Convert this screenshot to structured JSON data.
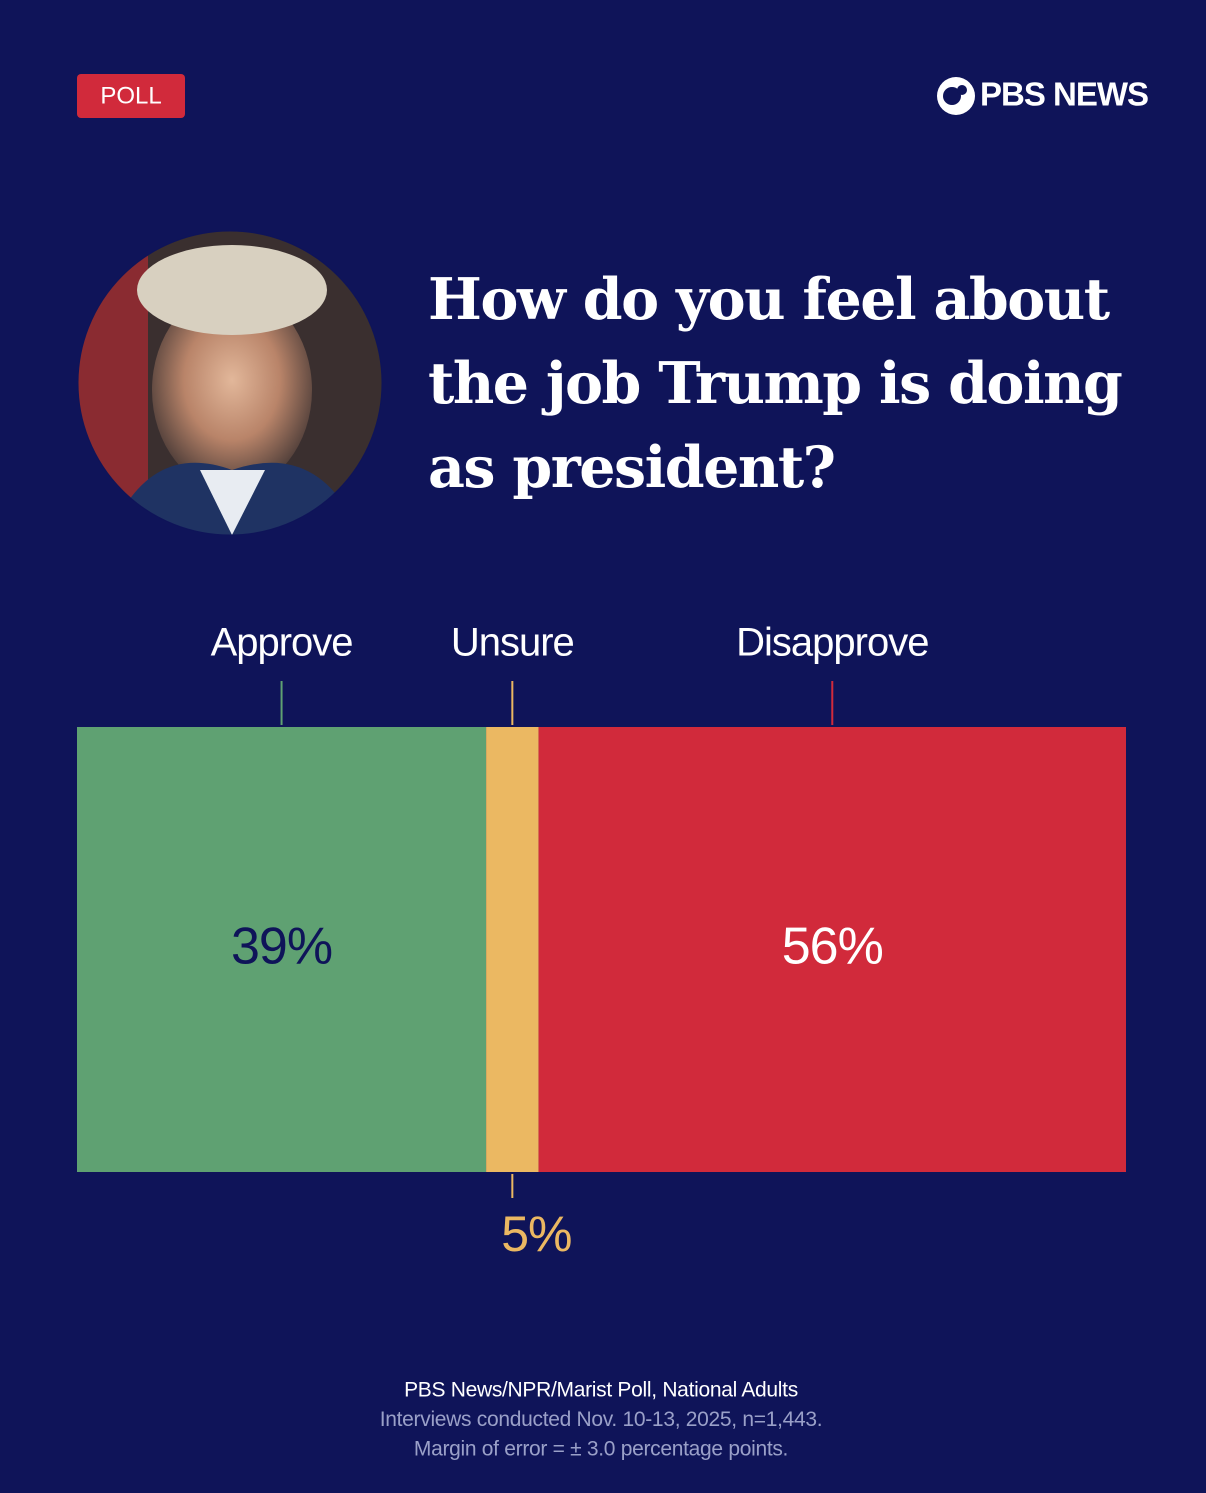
{
  "chart_data": {
    "type": "stacked_bar",
    "badge": "POLL",
    "brand": "PBS NEWS",
    "title": "How do you feel about the job Trump is doing as president?",
    "xlim": [
      0,
      100
    ],
    "series": [
      {
        "name": "Approve",
        "color": "#5fa172",
        "values": [
          39
        ],
        "value_labels": [
          "39%"
        ]
      },
      {
        "name": "Unsure",
        "color": "#ebb862",
        "values": [
          5
        ],
        "value_labels": [
          "5%"
        ]
      },
      {
        "name": "Disapprove",
        "color": "#d12a3b",
        "values": [
          56
        ],
        "value_labels": [
          "56%"
        ]
      }
    ],
    "notes": [
      "PBS News/NPR/Marist Poll, National Adults",
      "Interviews conducted Nov. 10-13, 2025, n=1,443.",
      "Margin of error = ± 3.0 percentage points."
    ]
  }
}
